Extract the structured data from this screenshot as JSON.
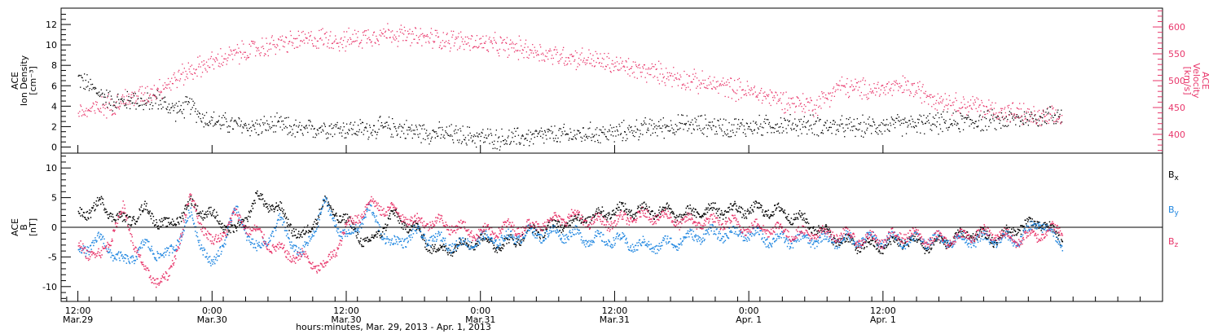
{
  "colors": {
    "black": "#000000",
    "pink": "#e8356a",
    "blue": "#1f86e0"
  },
  "chart_data": [
    {
      "type": "scatter",
      "left_axis": {
        "label_lines": [
          "ACE",
          "Ion Density",
          "[cm⁻³]"
        ],
        "ylim": [
          -0.6,
          13.6
        ],
        "ticks": [
          0,
          2,
          4,
          6,
          8,
          10,
          12
        ]
      },
      "right_axis": {
        "label_lines": [
          "ACE",
          "Velocity",
          "[km/s]"
        ],
        "ylim": [
          365,
          635
        ],
        "ticks": [
          400,
          450,
          500,
          550,
          600
        ]
      },
      "series": [
        {
          "axis": "left",
          "color": "#000000",
          "x_hours": [
            0,
            1,
            2,
            3,
            4,
            5,
            6,
            7,
            8,
            9,
            10,
            11,
            12,
            13,
            14,
            16,
            18,
            20,
            22,
            24,
            26,
            28,
            30,
            32,
            34,
            36,
            38,
            40,
            42,
            44,
            46,
            48,
            50,
            52,
            54,
            56,
            58,
            60,
            62,
            64,
            66,
            68,
            70,
            72,
            74,
            76,
            78,
            80,
            82,
            84,
            86,
            88
          ],
          "values": [
            6.8,
            6.0,
            5.2,
            4.6,
            4.4,
            4.8,
            4.2,
            4.8,
            4.0,
            3.6,
            4.2,
            3.0,
            2.6,
            2.4,
            2.2,
            2.0,
            2.2,
            1.6,
            2.0,
            1.8,
            1.8,
            2.0,
            1.6,
            1.4,
            1.2,
            1.0,
            0.8,
            1.0,
            1.2,
            1.2,
            1.4,
            1.4,
            1.8,
            2.0,
            2.2,
            2.2,
            2.0,
            2.0,
            2.2,
            2.2,
            2.2,
            2.0,
            2.0,
            2.2,
            2.2,
            2.4,
            2.4,
            2.6,
            2.6,
            2.8,
            3.0,
            3.2
          ]
        },
        {
          "axis": "right",
          "color": "#e8356a",
          "x_hours": [
            0,
            2,
            4,
            6,
            8,
            10,
            12,
            14,
            16,
            18,
            20,
            22,
            24,
            26,
            28,
            30,
            32,
            34,
            36,
            38,
            40,
            42,
            44,
            46,
            48,
            50,
            52,
            54,
            56,
            58,
            60,
            62,
            64,
            66,
            68,
            70,
            72,
            74,
            76,
            78,
            80,
            82,
            84,
            86,
            88
          ],
          "values": [
            440,
            450,
            465,
            475,
            495,
            520,
            535,
            550,
            560,
            570,
            575,
            580,
            575,
            585,
            590,
            580,
            580,
            575,
            570,
            565,
            560,
            550,
            545,
            540,
            530,
            520,
            515,
            505,
            495,
            490,
            480,
            470,
            460,
            455,
            490,
            485,
            485,
            490,
            475,
            460,
            455,
            445,
            440,
            430,
            430
          ]
        }
      ]
    },
    {
      "type": "line",
      "left_axis": {
        "label_lines": [
          "ACE",
          "B",
          "[nT]"
        ],
        "ylim": [
          -12.5,
          12.5
        ],
        "ticks": [
          -10,
          -5,
          0,
          5,
          10
        ]
      },
      "legend": [
        {
          "main": "B",
          "sub": "x",
          "color": "#000000"
        },
        {
          "main": "B",
          "sub": "y",
          "color": "#1f86e0"
        },
        {
          "main": "B",
          "sub": "z",
          "color": "#e8356a"
        }
      ],
      "series": [
        {
          "name": "Bx",
          "color": "#000000",
          "x_hours": [
            0,
            2,
            4,
            6,
            8,
            10,
            12,
            14,
            16,
            18,
            20,
            22,
            24,
            26,
            28,
            30,
            32,
            34,
            36,
            38,
            40,
            42,
            44,
            46,
            48,
            50,
            52,
            54,
            56,
            58,
            60,
            62,
            64,
            66,
            68,
            70,
            72,
            74,
            76,
            78,
            80,
            82,
            84,
            86,
            88
          ],
          "values": [
            2,
            4,
            1,
            3,
            0,
            4,
            2,
            -1,
            5,
            3,
            -2,
            4,
            1,
            -3,
            2,
            0,
            -4,
            -3,
            -2,
            -3,
            -1,
            0,
            1,
            2,
            3,
            3,
            3,
            2,
            3,
            3,
            3,
            3,
            2,
            0,
            -2,
            -3,
            -3,
            -2,
            -3,
            -2,
            -1,
            -2,
            0,
            1,
            -2
          ]
        },
        {
          "name": "By",
          "color": "#1f86e0",
          "x_hours": [
            0,
            2,
            4,
            6,
            8,
            10,
            12,
            14,
            16,
            18,
            20,
            22,
            24,
            26,
            28,
            30,
            32,
            34,
            36,
            38,
            40,
            42,
            44,
            46,
            48,
            50,
            52,
            54,
            56,
            58,
            60,
            62,
            64,
            66,
            68,
            70,
            72,
            74,
            76,
            78,
            80,
            82,
            84,
            86,
            88
          ],
          "values": [
            -4,
            -2,
            -6,
            -3,
            -5,
            2,
            -7,
            3,
            -4,
            1,
            -5,
            4,
            -2,
            3,
            -3,
            -1,
            -2,
            -3,
            -2,
            -2,
            -1,
            -1,
            -1,
            -2,
            -2,
            -3,
            -3,
            -2,
            -1,
            -1,
            -1,
            -2,
            -2,
            -2,
            -2,
            -2,
            -2,
            -2,
            -2,
            -2,
            -2,
            -2,
            -2,
            1,
            -3
          ]
        },
        {
          "name": "Bz",
          "color": "#e8356a",
          "x_hours": [
            0,
            2,
            4,
            6,
            8,
            10,
            12,
            14,
            16,
            18,
            20,
            22,
            24,
            26,
            28,
            30,
            32,
            34,
            36,
            38,
            40,
            42,
            44,
            46,
            48,
            50,
            52,
            54,
            56,
            58,
            60,
            62,
            64,
            66,
            68,
            70,
            72,
            74,
            76,
            78,
            80,
            82,
            84,
            86,
            88
          ],
          "values": [
            -3,
            -5,
            3,
            -8,
            -9,
            5,
            -3,
            2,
            -1,
            -4,
            -5,
            -7,
            0,
            4,
            3,
            1,
            1,
            0,
            -1,
            0,
            0,
            1,
            2,
            1,
            1,
            2,
            2,
            1,
            1,
            1,
            0,
            0,
            -1,
            -1,
            -1,
            -2,
            -2,
            -1,
            -2,
            -2,
            -1,
            -1,
            -2,
            -1,
            0
          ]
        }
      ]
    }
  ],
  "x_axis": {
    "xlim_hours": [
      -1.5,
      97
    ],
    "major_ticks": [
      {
        "hour": 0,
        "time": "12:00",
        "date": "Mar.29"
      },
      {
        "hour": 12,
        "time": "0:00",
        "date": "Mar.30"
      },
      {
        "hour": 24,
        "time": "12:00",
        "date": "Mar.30"
      },
      {
        "hour": 36,
        "time": "0:00",
        "date": "Mar.31"
      },
      {
        "hour": 48,
        "time": "12:00",
        "date": "Mar.31"
      },
      {
        "hour": 60,
        "time": "0:00",
        "date": "Apr. 1"
      },
      {
        "hour": 72,
        "time": "12:00",
        "date": "Apr. 1"
      }
    ],
    "label": "hours:minutes, Mar. 29, 2013 - Apr.  1, 2013"
  }
}
